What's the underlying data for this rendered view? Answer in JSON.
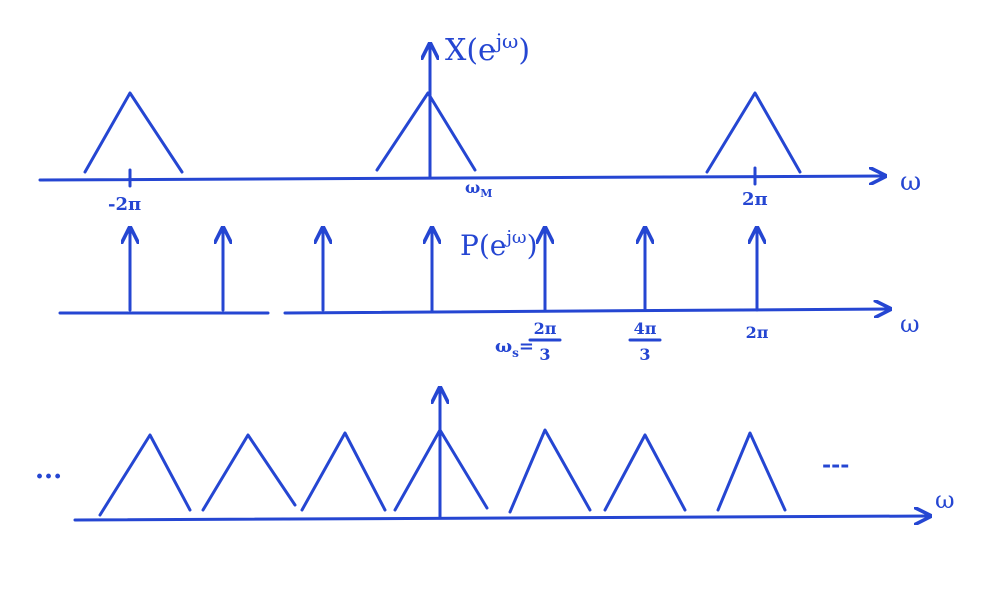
{
  "panels": [
    {
      "title": {
        "base": "X(e",
        "sup": "jω",
        "end": ")"
      },
      "axis_label": "ω",
      "tick_labels": [
        {
          "text": "-2π"
        },
        {
          "text": "ω",
          "sub": "M"
        },
        {
          "text": "2π"
        }
      ]
    },
    {
      "title": {
        "base": "P(e",
        "sup": "jω",
        "end": ")"
      },
      "axis_label": "ω",
      "tick_labels": [
        {
          "text": "ω",
          "sub": "s",
          "eq": "=",
          "num": "2π",
          "den": "3"
        },
        {
          "num": "4π",
          "den": "3"
        },
        {
          "text": "2π"
        }
      ]
    },
    {
      "axis_label": "ω",
      "left_ellipsis": "...",
      "right_ellipsis": "---"
    }
  ]
}
